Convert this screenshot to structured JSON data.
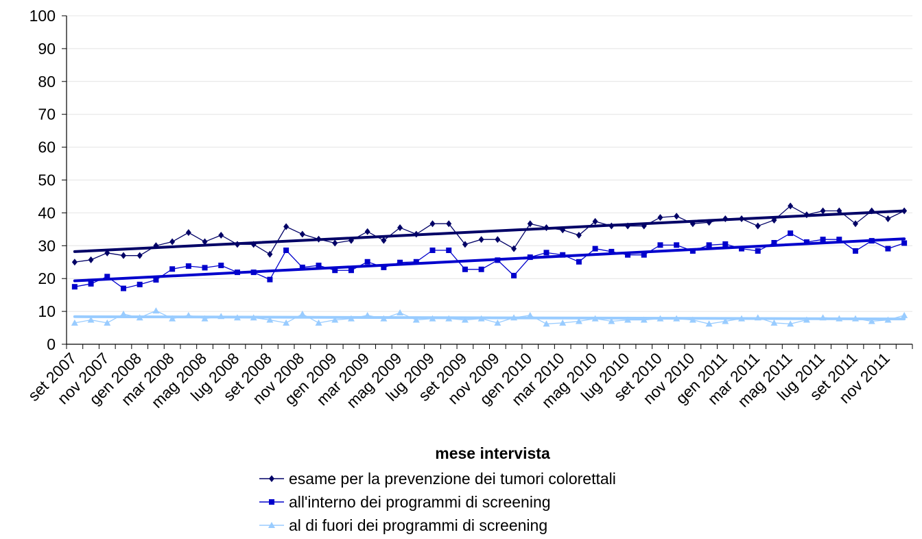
{
  "chart_data": {
    "type": "line",
    "title": "",
    "xlabel": "mese intervista",
    "ylabel": "",
    "ylim": [
      0,
      100
    ],
    "yticks": [
      0,
      10,
      20,
      30,
      40,
      50,
      60,
      70,
      80,
      90,
      100
    ],
    "grid": "horizontal",
    "legend_position": "bottom",
    "x_tick_labels": [
      "set 2007",
      "nov 2007",
      "gen 2008",
      "mar 2008",
      "mag 2008",
      "lug 2008",
      "set 2008",
      "nov 2008",
      "gen 2009",
      "mar 2009",
      "mag 2009",
      "lug 2009",
      "set 2009",
      "nov 2009",
      "gen 2010",
      "mar 2010",
      "mag 2010",
      "lug 2010",
      "set 2010",
      "nov 2010",
      "gen 2011",
      "mar 2011",
      "mag 2011",
      "lug 2011",
      "set 2011",
      "nov 2011"
    ],
    "x": [
      "set 2007",
      "ott 2007",
      "nov 2007",
      "dic 2007",
      "gen 2008",
      "feb 2008",
      "mar 2008",
      "apr 2008",
      "mag 2008",
      "giu 2008",
      "lug 2008",
      "ago 2008",
      "set 2008",
      "ott 2008",
      "nov 2008",
      "dic 2008",
      "gen 2009",
      "feb 2009",
      "mar 2009",
      "apr 2009",
      "mag 2009",
      "giu 2009",
      "lug 2009",
      "ago 2009",
      "set 2009",
      "ott 2009",
      "nov 2009",
      "dic 2009",
      "gen 2010",
      "feb 2010",
      "mar 2010",
      "apr 2010",
      "mag 2010",
      "giu 2010",
      "lug 2010",
      "ago 2010",
      "set 2010",
      "ott 2010",
      "nov 2010",
      "dic 2010",
      "gen 2011",
      "feb 2011",
      "mar 2011",
      "apr 2011",
      "mag 2011",
      "giu 2011",
      "lug 2011",
      "ago 2011",
      "set 2011",
      "ott 2011",
      "nov 2011",
      "dic 2011"
    ],
    "series": [
      {
        "name": "esame per la prevenzione dei tumori colorettali",
        "color": "#000066",
        "marker": "diamond",
        "values": [
          25,
          25.7,
          27.8,
          27,
          27,
          30,
          31.2,
          34,
          31.2,
          33.2,
          30.4,
          30.4,
          27.4,
          35.8,
          33.5,
          32,
          30.8,
          31.6,
          34.3,
          31.6,
          35.5,
          33.5,
          36.7,
          36.7,
          30.4,
          31.9,
          31.9,
          29.1,
          36.7,
          35.5,
          34.8,
          33.2,
          37.4,
          36,
          36,
          36,
          38.6,
          39,
          36.7,
          37.1,
          38.2,
          38.2,
          36,
          37.8,
          42.1,
          39.4,
          40.6,
          40.6,
          36.7,
          40.6,
          38.2,
          40.6
        ],
        "trendline": [
          28.2,
          40.6
        ]
      },
      {
        "name": "all'interno dei programmi di screening",
        "color": "#0000cc",
        "marker": "square",
        "values": [
          17.5,
          18.4,
          20.6,
          17,
          18.2,
          19.6,
          22.9,
          23.8,
          23.3,
          24,
          21.9,
          21.9,
          19.7,
          28.6,
          23.4,
          24,
          22.5,
          22.5,
          25.1,
          23.4,
          24.9,
          25.1,
          28.6,
          28.6,
          22.8,
          22.8,
          25.6,
          20.9,
          26.5,
          27.9,
          27.2,
          25.1,
          29.1,
          28.2,
          27.2,
          27.2,
          30.2,
          30.2,
          28.4,
          30.2,
          30.5,
          29.1,
          28.4,
          30.9,
          33.8,
          31.1,
          31.9,
          31.9,
          28.4,
          31.5,
          29.1,
          30.8
        ],
        "trendline": [
          19.3,
          32.1
        ]
      },
      {
        "name": "al di fuori dei programmi di screening",
        "color": "#99ccff",
        "marker": "triangle",
        "values": [
          6.5,
          7.4,
          6.5,
          9.2,
          8.1,
          10.2,
          7.8,
          8.8,
          7.8,
          8.5,
          8.1,
          8.1,
          7.4,
          6.5,
          9.2,
          6.5,
          7.4,
          7.8,
          8.8,
          7.8,
          9.6,
          7.4,
          7.8,
          7.8,
          7.4,
          7.8,
          6.5,
          8.1,
          8.8,
          6.2,
          6.5,
          7,
          7.8,
          7,
          7.4,
          7.4,
          7.8,
          7.8,
          7.4,
          6.2,
          7,
          7.8,
          8.1,
          6.5,
          6.2,
          7.4,
          8.1,
          7.8,
          7.8,
          7,
          7.4,
          8.8
        ],
        "trendline": [
          8.4,
          7.7
        ]
      }
    ]
  }
}
